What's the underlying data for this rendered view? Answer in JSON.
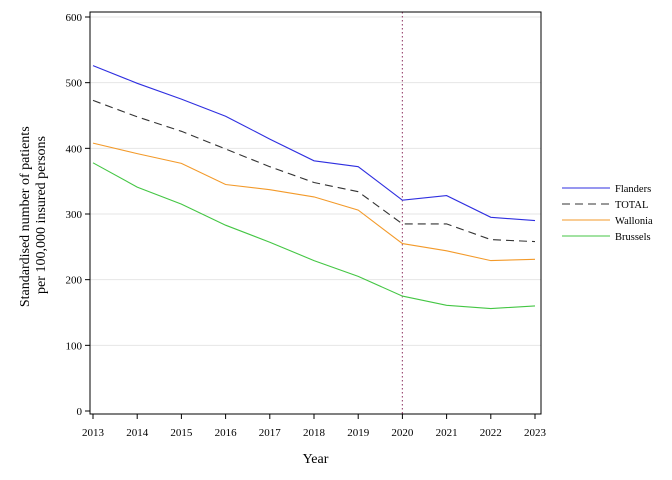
{
  "chart_data": {
    "type": "line",
    "xlabel": "Year",
    "ylabel_lines": [
      "Standardised number of patients",
      "per 100,000 insured persons"
    ],
    "x": [
      2013,
      2014,
      2015,
      2016,
      2017,
      2018,
      2019,
      2020,
      2021,
      2022,
      2023
    ],
    "x_tick_labels": [
      "2013",
      "2014",
      "2015",
      "2016",
      "2017",
      "2018",
      "2019",
      "2020",
      "2021",
      "2022",
      "2023"
    ],
    "xlim": [
      2013,
      2023
    ],
    "ylim": [
      0,
      600
    ],
    "y_ticks": [
      0,
      100,
      200,
      300,
      400,
      500,
      600
    ],
    "y_tick_labels": [
      "0",
      "100",
      "200",
      "300",
      "400",
      "500",
      "600"
    ],
    "grid": "horizontal",
    "reference_line": {
      "x": 2020,
      "style": "dotted",
      "color": "#a0527a"
    },
    "legend_position": "right",
    "series": [
      {
        "name": "Flanders",
        "color": "#2f2fe0",
        "dash": "solid",
        "values": [
          526,
          499,
          475,
          449,
          414,
          381,
          372,
          321,
          328,
          295,
          290
        ]
      },
      {
        "name": "TOTAL",
        "color": "#333333",
        "dash": "dashed",
        "values": [
          473,
          448,
          426,
          399,
          372,
          348,
          334,
          285,
          285,
          261,
          258
        ]
      },
      {
        "name": "Wallonia",
        "color": "#f39a2a",
        "dash": "solid",
        "values": [
          408,
          392,
          377,
          345,
          337,
          326,
          306,
          255,
          244,
          229,
          231
        ]
      },
      {
        "name": "Brussels",
        "color": "#44c644",
        "dash": "solid",
        "values": [
          378,
          341,
          315,
          283,
          257,
          229,
          205,
          175,
          161,
          156,
          160
        ]
      }
    ]
  }
}
